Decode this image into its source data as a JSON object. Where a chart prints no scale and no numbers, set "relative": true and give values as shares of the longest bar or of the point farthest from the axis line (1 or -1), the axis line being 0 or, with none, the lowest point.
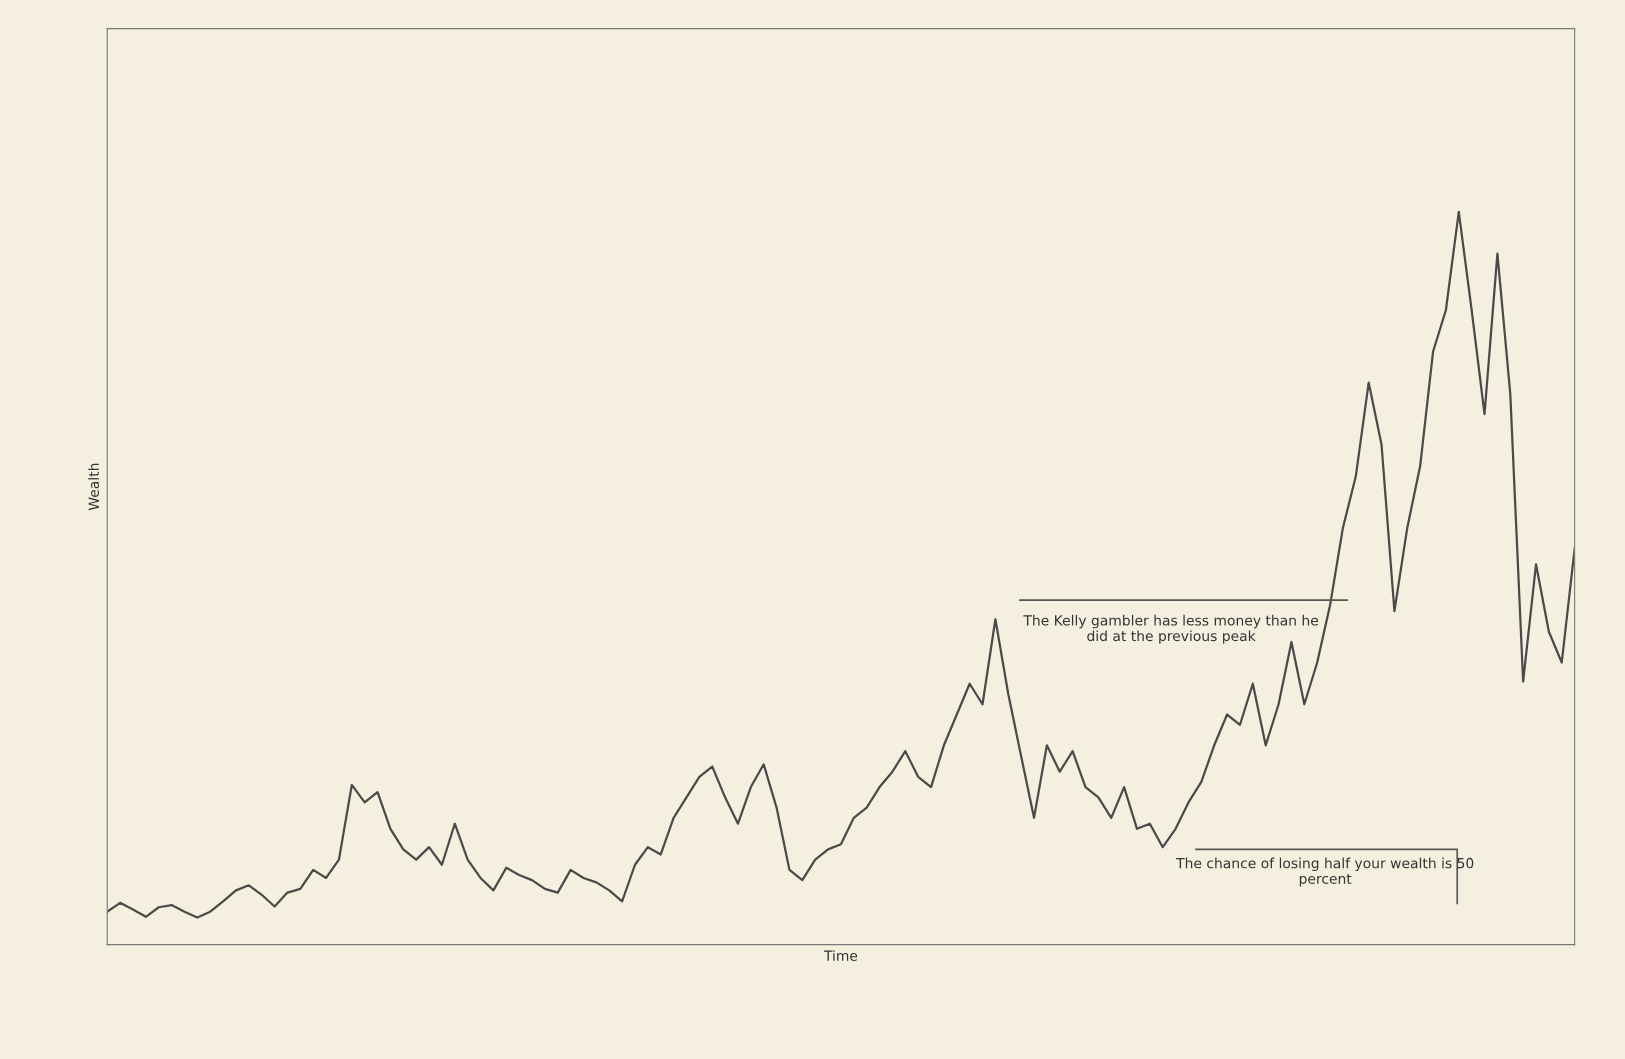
{
  "chart_data": {
    "type": "line",
    "relative": true,
    "xlabel": "Time",
    "ylabel": "Wealth",
    "color": "#4a4a4a",
    "legend": false,
    "categories": [
      null,
      null,
      null,
      null,
      null,
      null,
      null,
      null,
      null,
      null,
      null,
      null,
      null,
      null,
      null,
      null,
      null,
      null,
      null,
      null,
      null,
      null,
      null,
      null,
      null,
      null,
      null,
      null,
      null,
      null,
      null,
      null,
      null,
      null,
      null,
      null,
      null,
      null,
      null,
      null,
      null,
      null,
      null,
      null,
      null,
      null,
      null,
      null,
      null,
      null,
      null,
      null,
      null,
      null,
      null,
      null,
      null,
      null,
      null,
      null,
      null,
      null,
      null,
      null,
      null,
      null,
      null,
      null,
      null,
      null,
      null,
      null,
      null,
      null,
      null,
      null,
      null,
      null,
      null,
      null,
      null,
      null,
      null,
      null,
      null,
      null,
      null,
      null,
      null,
      null,
      null,
      null,
      null,
      null,
      null,
      null,
      null,
      null,
      null,
      null,
      null,
      null,
      null,
      null,
      null,
      null,
      null,
      null,
      null,
      null,
      null,
      null,
      null,
      null,
      null
    ],
    "values": [
      0.045,
      0.057,
      0.048,
      0.038,
      0.051,
      0.054,
      0.045,
      0.037,
      0.045,
      0.059,
      0.074,
      0.081,
      0.068,
      0.052,
      0.071,
      0.076,
      0.102,
      0.091,
      0.116,
      0.218,
      0.194,
      0.208,
      0.158,
      0.13,
      0.116,
      0.133,
      0.109,
      0.165,
      0.116,
      0.091,
      0.074,
      0.105,
      0.095,
      0.088,
      0.076,
      0.071,
      0.102,
      0.091,
      0.085,
      0.074,
      0.059,
      0.109,
      0.133,
      0.123,
      0.173,
      0.201,
      0.229,
      0.243,
      0.201,
      0.165,
      0.215,
      0.246,
      0.187,
      0.102,
      0.088,
      0.116,
      0.13,
      0.137,
      0.173,
      0.187,
      0.215,
      0.236,
      0.264,
      0.229,
      0.215,
      0.272,
      0.314,
      0.356,
      0.328,
      0.444,
      0.342,
      0.257,
      0.173,
      0.272,
      0.236,
      0.264,
      0.215,
      0.201,
      0.173,
      0.215,
      0.158,
      0.165,
      0.133,
      0.158,
      0.194,
      0.222,
      0.272,
      0.314,
      0.3,
      0.356,
      0.272,
      0.328,
      0.413,
      0.328,
      0.385,
      0.463,
      0.569,
      0.639,
      0.767,
      0.682,
      0.455,
      0.569,
      0.653,
      0.809,
      0.866,
      1,
      0.866,
      0.724,
      0.943,
      0.752,
      0.359,
      0.519,
      0.427,
      0.385,
      0.54
    ],
    "annotations": [
      "The Kelly gambler has less money than he did at the previous peak",
      "The chance of losing half your wealth is 50 percent"
    ]
  }
}
